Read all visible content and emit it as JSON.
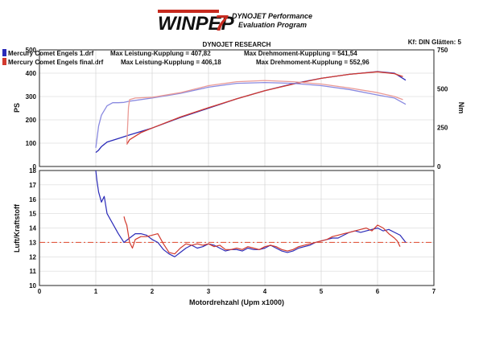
{
  "header": {
    "logo_text": "WINPEP",
    "logo_mark": "7",
    "brand_line1": "DYNOJET Performance",
    "brand_line2": "Evaluation Program",
    "research_title": "DYNOJET RESEARCH",
    "correction": "Kf: DIN  Glätten: 5"
  },
  "legend": {
    "run1": {
      "name": "Mercury Comet Engels 1.drf",
      "power_text": "Max Leistung-Kupplung = 407,82",
      "torque_text": "Max Drehmoment-Kupplung = 541,54",
      "color": "#2b2bb8"
    },
    "run2": {
      "name": "Mercury Comet Engels final.drf",
      "power_text": "Max Leistung-Kupplung = 406,18",
      "torque_text": "Max Drehmoment-Kupplung = 552,96",
      "color": "#d23a2e"
    }
  },
  "chart_data": [
    {
      "type": "line",
      "panel": "top",
      "ylabel": "PS",
      "y2label": "Nm",
      "xlim": [
        0,
        7
      ],
      "ylim": [
        0,
        500
      ],
      "y2lim": [
        0,
        750
      ],
      "yticks": [
        "0",
        "100",
        "200",
        "300",
        "400",
        "500"
      ],
      "y2ticks": [
        "0",
        "250",
        "500",
        "750"
      ],
      "grid": true,
      "series": [
        {
          "name": "Mercury Comet Engels 1.drf",
          "measure": "PS",
          "axis": "left",
          "color": "#2b2bb8",
          "x": [
            1.0,
            1.05,
            1.1,
            1.2,
            1.4,
            1.6,
            2.0,
            2.5,
            3.0,
            3.5,
            4.0,
            4.5,
            5.0,
            5.5,
            6.0,
            6.3,
            6.5
          ],
          "y": [
            60,
            70,
            85,
            105,
            120,
            135,
            165,
            210,
            250,
            290,
            325,
            355,
            378,
            395,
            407,
            400,
            370
          ]
        },
        {
          "name": "Mercury Comet Engels final.drf",
          "measure": "PS",
          "axis": "left",
          "color": "#d23a2e",
          "x": [
            1.55,
            1.6,
            1.8,
            2.0,
            2.5,
            3.0,
            3.5,
            4.0,
            4.5,
            5.0,
            5.5,
            6.0,
            6.3,
            6.45
          ],
          "y": [
            95,
            115,
            145,
            165,
            212,
            252,
            290,
            325,
            353,
            378,
            395,
            406,
            398,
            385
          ]
        },
        {
          "name": "Mercury Comet Engels 1.drf",
          "measure": "Nm",
          "axis": "right",
          "color": "#8a8ae0",
          "x": [
            1.0,
            1.05,
            1.1,
            1.2,
            1.3,
            1.4,
            1.5,
            1.6,
            2.0,
            2.5,
            3.0,
            3.5,
            4.0,
            4.5,
            5.0,
            5.5,
            6.0,
            6.3,
            6.5
          ],
          "y": [
            120,
            260,
            330,
            390,
            410,
            410,
            412,
            420,
            440,
            470,
            510,
            535,
            540,
            535,
            520,
            495,
            460,
            440,
            400
          ]
        },
        {
          "name": "Mercury Comet Engels final.drf",
          "measure": "Nm",
          "axis": "right",
          "color": "#ea9a95",
          "x": [
            1.55,
            1.58,
            1.6,
            1.7,
            2.0,
            2.5,
            3.0,
            3.5,
            4.0,
            4.5,
            5.0,
            5.5,
            6.0,
            6.3,
            6.45
          ],
          "y": [
            140,
            380,
            430,
            440,
            445,
            475,
            520,
            545,
            553,
            545,
            530,
            505,
            475,
            450,
            430
          ]
        }
      ]
    },
    {
      "type": "line",
      "panel": "bottom",
      "ylabel": "Luft/Kraftstoff",
      "xlabel": "Motordrehzahl (Upm x1000)",
      "xlim": [
        0,
        7
      ],
      "ylim": [
        10,
        18
      ],
      "xticks": [
        "0",
        "1",
        "2",
        "3",
        "4",
        "5",
        "6",
        "7"
      ],
      "yticks": [
        "10",
        "11",
        "12",
        "13",
        "14",
        "15",
        "16",
        "17",
        "18"
      ],
      "reference_value": 13.0,
      "reference_color": "#e0472c",
      "grid": true,
      "series": [
        {
          "name": "Mercury Comet Engels 1.drf",
          "color": "#2b2bb8",
          "x": [
            1.0,
            1.02,
            1.05,
            1.1,
            1.15,
            1.2,
            1.3,
            1.4,
            1.5,
            1.6,
            1.7,
            1.8,
            1.9,
            2.0,
            2.1,
            2.2,
            2.3,
            2.4,
            2.5,
            2.6,
            2.7,
            2.8,
            2.9,
            3.0,
            3.1,
            3.2,
            3.3,
            3.4,
            3.5,
            3.6,
            3.7,
            3.8,
            3.9,
            4.0,
            4.1,
            4.2,
            4.3,
            4.4,
            4.5,
            4.6,
            4.7,
            4.8,
            4.9,
            5.0,
            5.1,
            5.2,
            5.3,
            5.4,
            5.5,
            5.6,
            5.7,
            5.8,
            5.9,
            6.0,
            6.1,
            6.2,
            6.3,
            6.4,
            6.5
          ],
          "y": [
            18.0,
            17.3,
            16.5,
            15.8,
            16.2,
            15.0,
            14.3,
            13.6,
            13.0,
            13.3,
            13.6,
            13.6,
            13.5,
            13.2,
            13.0,
            12.5,
            12.2,
            12.0,
            12.3,
            12.6,
            12.8,
            12.6,
            12.7,
            12.9,
            12.8,
            12.6,
            12.4,
            12.5,
            12.5,
            12.4,
            12.6,
            12.5,
            12.5,
            12.6,
            12.8,
            12.6,
            12.4,
            12.3,
            12.4,
            12.6,
            12.7,
            12.8,
            13.0,
            13.1,
            13.2,
            13.3,
            13.3,
            13.5,
            13.7,
            13.8,
            13.7,
            13.8,
            13.9,
            14.0,
            13.8,
            13.9,
            13.7,
            13.5,
            13.0
          ]
        },
        {
          "name": "Mercury Comet Engels final.drf",
          "color": "#d23a2e",
          "x": [
            1.5,
            1.52,
            1.55,
            1.6,
            1.65,
            1.7,
            1.8,
            1.9,
            2.0,
            2.1,
            2.2,
            2.3,
            2.4,
            2.5,
            2.6,
            2.7,
            2.8,
            2.9,
            3.0,
            3.1,
            3.2,
            3.3,
            3.4,
            3.5,
            3.6,
            3.7,
            3.8,
            3.9,
            4.0,
            4.1,
            4.2,
            4.3,
            4.4,
            4.5,
            4.6,
            4.7,
            4.8,
            4.9,
            5.0,
            5.1,
            5.2,
            5.3,
            5.4,
            5.5,
            5.6,
            5.7,
            5.8,
            5.9,
            6.0,
            6.1,
            6.2,
            6.3,
            6.35,
            6.4
          ],
          "y": [
            14.8,
            14.5,
            14.2,
            13.0,
            12.6,
            13.2,
            13.4,
            13.4,
            13.5,
            13.6,
            12.9,
            12.3,
            12.2,
            12.6,
            12.9,
            12.8,
            12.9,
            12.8,
            12.9,
            12.7,
            12.8,
            12.5,
            12.5,
            12.6,
            12.5,
            12.7,
            12.6,
            12.5,
            12.7,
            12.8,
            12.7,
            12.5,
            12.4,
            12.5,
            12.7,
            12.8,
            12.9,
            13.0,
            13.1,
            13.2,
            13.4,
            13.5,
            13.6,
            13.7,
            13.8,
            13.9,
            14.0,
            13.8,
            14.2,
            14.0,
            13.6,
            13.3,
            13.1,
            12.7
          ]
        }
      ]
    }
  ]
}
